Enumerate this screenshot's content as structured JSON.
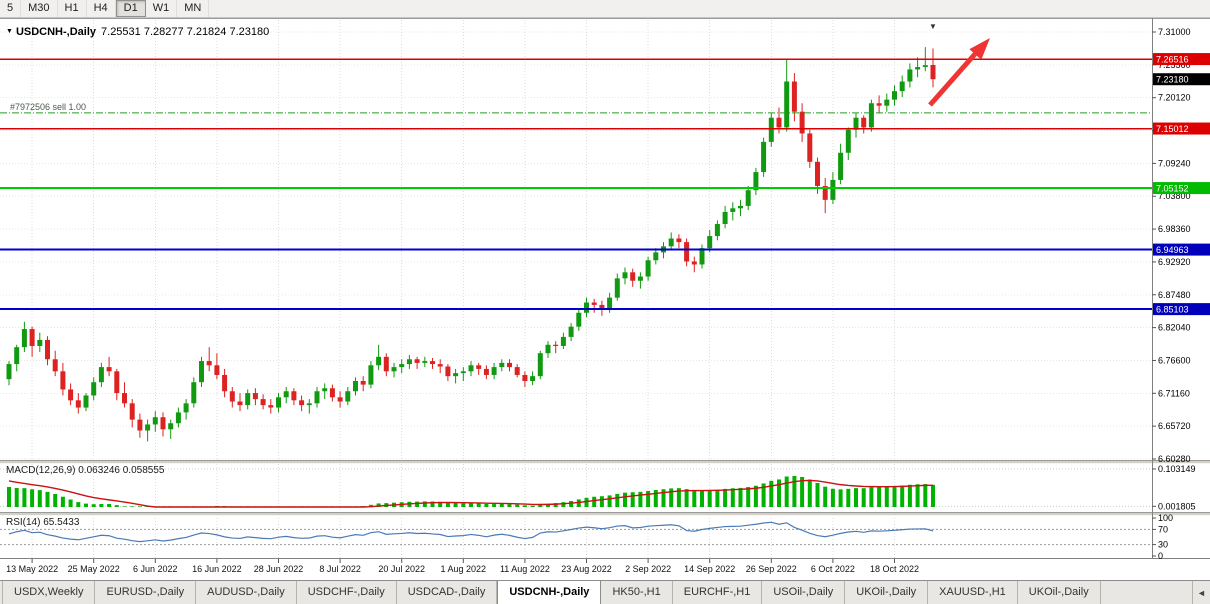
{
  "toolbar": {
    "timeframes": [
      {
        "label": "5",
        "active": false
      },
      {
        "label": "M30",
        "active": false
      },
      {
        "label": "H1",
        "active": false
      },
      {
        "label": "H4",
        "active": false
      },
      {
        "label": "D1",
        "active": true
      },
      {
        "label": "W1",
        "active": false
      },
      {
        "label": "MN",
        "active": false
      }
    ]
  },
  "chart": {
    "marker_icon": "▼",
    "shift_marker_icon": "▼",
    "title": "USDCNH-,Daily",
    "ohlc_text": "7.25531 7.28277 7.21824 7.23180"
  },
  "tabs": {
    "scroll_left_icon": "◄",
    "items": [
      {
        "label": "USDX,Weekly",
        "active": false
      },
      {
        "label": "EURUSD-,Daily",
        "active": false
      },
      {
        "label": "AUDUSD-,Daily",
        "active": false
      },
      {
        "label": "USDCHF-,Daily",
        "active": false
      },
      {
        "label": "USDCAD-,Daily",
        "active": false
      },
      {
        "label": "USDCNH-,Daily",
        "active": true
      },
      {
        "label": "HK50-,H1",
        "active": false
      },
      {
        "label": "EURCHF-,H1",
        "active": false
      },
      {
        "label": "USOil-,Daily",
        "active": false
      },
      {
        "label": "UKOil-,Daily",
        "active": false
      },
      {
        "label": "XAUUSD-,H1",
        "active": false
      },
      {
        "label": "UKOil-,Daily",
        "active": false
      }
    ]
  },
  "chart_data": {
    "type": "candlestick",
    "symbol": "USDCNH-",
    "period": "Daily",
    "open": 7.25531,
    "high": 7.28277,
    "low": 7.21824,
    "close": 7.2318,
    "colors": {
      "up": "#119a11",
      "down": "#dd2222"
    },
    "y_axis": {
      "min": 6.6028,
      "max": 7.31,
      "ticks": [
        7.31,
        7.2556,
        7.2012,
        7.1468,
        7.0924,
        7.038,
        6.9836,
        6.9292,
        6.8748,
        6.8204,
        6.766,
        6.7116,
        6.6572,
        6.6028
      ]
    },
    "x_axis": {
      "labels": [
        "13 May 2022",
        "25 May 2022",
        "6 Jun 2022",
        "16 Jun 2022",
        "28 Jun 2022",
        "8 Jul 2022",
        "20 Jul 2022",
        "1 Aug 2022",
        "11 Aug 2022",
        "23 Aug 2022",
        "2 Sep 2022",
        "14 Sep 2022",
        "26 Sep 2022",
        "6 Oct 2022",
        "18 Oct 2022"
      ],
      "label_indices": [
        3,
        11,
        19,
        27,
        35,
        43,
        51,
        59,
        67,
        75,
        83,
        91,
        99,
        107,
        115
      ]
    },
    "horizontal_lines": [
      {
        "price": 7.26516,
        "color": "#dd0000",
        "width": 1.5,
        "tag": "7.26516"
      },
      {
        "price": 7.15012,
        "color": "#dd0000",
        "width": 1.5,
        "tag": "7.15012"
      },
      {
        "price": 7.05152,
        "color": "#00cc00",
        "width": 2,
        "tag": "7.05152"
      },
      {
        "price": 6.94963,
        "color": "#0000cc",
        "width": 2,
        "tag": "6.94963"
      },
      {
        "price": 6.85103,
        "color": "#0000cc",
        "width": 2,
        "tag": "6.85103"
      }
    ],
    "price_tags": [
      {
        "text": "7.26516",
        "price": 7.26516,
        "bg": "#dd0000"
      },
      {
        "text": "7.23180",
        "price": 7.2318,
        "bg": "#000000"
      },
      {
        "text": "7.15012",
        "price": 7.15012,
        "bg": "#dd0000"
      },
      {
        "text": "7.05152",
        "price": 7.05152,
        "bg": "#00bb00"
      },
      {
        "text": "6.94963",
        "price": 6.94963,
        "bg": "#0000bb"
      },
      {
        "text": "6.85103",
        "price": 6.85103,
        "bg": "#0000bb"
      }
    ],
    "position_line": {
      "price": 7.176,
      "color": "#1fa11f",
      "label": "#7972506 sell 1.00"
    },
    "trend_arrow": {
      "color": "#f03333"
    },
    "indicators": {
      "macd": {
        "display": "MACD(12,26,9) 0.063246 0.058555",
        "value": 0.063246,
        "signal_value": 0.058555,
        "axis_ticks": [
          0.103149,
          0.001805
        ],
        "histogram_color": "#00b300",
        "signal_color": "#cc1111"
      },
      "rsi": {
        "display": "RSI(14) 65.5433",
        "value": 65.5433,
        "levels": [
          70,
          30
        ],
        "axis_ticks": [
          100,
          70,
          30,
          0
        ],
        "line_color": "#4a7ab5"
      }
    },
    "candles": [
      [
        6.735,
        6.765,
        6.725,
        6.76
      ],
      [
        6.76,
        6.792,
        6.748,
        6.788
      ],
      [
        6.788,
        6.83,
        6.78,
        6.818
      ],
      [
        6.818,
        6.822,
        6.772,
        6.79
      ],
      [
        6.79,
        6.812,
        6.78,
        6.8
      ],
      [
        6.8,
        6.806,
        6.758,
        6.768
      ],
      [
        6.768,
        6.782,
        6.74,
        6.748
      ],
      [
        6.748,
        6.762,
        6.708,
        6.718
      ],
      [
        6.718,
        6.728,
        6.692,
        6.7
      ],
      [
        6.7,
        6.712,
        6.678,
        6.688
      ],
      [
        6.688,
        6.712,
        6.682,
        6.708
      ],
      [
        6.708,
        6.738,
        6.7,
        6.73
      ],
      [
        6.73,
        6.762,
        6.722,
        6.755
      ],
      [
        6.755,
        6.772,
        6.74,
        6.748
      ],
      [
        6.748,
        6.752,
        6.7,
        6.712
      ],
      [
        6.712,
        6.73,
        6.688,
        6.695
      ],
      [
        6.695,
        6.702,
        6.655,
        6.668
      ],
      [
        6.668,
        6.678,
        6.638,
        6.65
      ],
      [
        6.65,
        6.668,
        6.632,
        6.66
      ],
      [
        6.66,
        6.682,
        6.648,
        6.672
      ],
      [
        6.672,
        6.68,
        6.64,
        6.652
      ],
      [
        6.652,
        6.668,
        6.636,
        6.662
      ],
      [
        6.662,
        6.688,
        6.655,
        6.68
      ],
      [
        6.68,
        6.702,
        6.668,
        6.695
      ],
      [
        6.695,
        6.738,
        6.688,
        6.73
      ],
      [
        6.73,
        6.772,
        6.722,
        6.765
      ],
      [
        6.765,
        6.788,
        6.748,
        6.758
      ],
      [
        6.758,
        6.778,
        6.735,
        6.742
      ],
      [
        6.742,
        6.752,
        6.705,
        6.715
      ],
      [
        6.715,
        6.722,
        6.688,
        6.698
      ],
      [
        6.698,
        6.712,
        6.682,
        6.692
      ],
      [
        6.692,
        6.718,
        6.685,
        6.712
      ],
      [
        6.712,
        6.72,
        6.692,
        6.702
      ],
      [
        6.702,
        6.71,
        6.685,
        6.692
      ],
      [
        6.692,
        6.702,
        6.678,
        6.688
      ],
      [
        6.688,
        6.712,
        6.68,
        6.705
      ],
      [
        6.705,
        6.722,
        6.695,
        6.715
      ],
      [
        6.715,
        6.72,
        6.692,
        6.7
      ],
      [
        6.7,
        6.708,
        6.682,
        6.692
      ],
      [
        6.692,
        6.702,
        6.678,
        6.695
      ],
      [
        6.695,
        6.722,
        6.688,
        6.715
      ],
      [
        6.715,
        6.728,
        6.702,
        6.72
      ],
      [
        6.72,
        6.726,
        6.698,
        6.705
      ],
      [
        6.705,
        6.715,
        6.688,
        6.698
      ],
      [
        6.698,
        6.722,
        6.692,
        6.715
      ],
      [
        6.715,
        6.738,
        6.708,
        6.732
      ],
      [
        6.732,
        6.74,
        6.715,
        6.726
      ],
      [
        6.726,
        6.765,
        6.72,
        6.758
      ],
      [
        6.758,
        6.792,
        6.75,
        6.772
      ],
      [
        6.772,
        6.778,
        6.74,
        6.748
      ],
      [
        6.748,
        6.762,
        6.738,
        6.755
      ],
      [
        6.755,
        6.768,
        6.745,
        6.76
      ],
      [
        6.76,
        6.775,
        6.752,
        6.768
      ],
      [
        6.768,
        6.772,
        6.752,
        6.762
      ],
      [
        6.762,
        6.772,
        6.755,
        6.765
      ],
      [
        6.765,
        6.77,
        6.752,
        6.76
      ],
      [
        6.76,
        6.768,
        6.745,
        6.756
      ],
      [
        6.756,
        6.76,
        6.732,
        6.74
      ],
      [
        6.74,
        6.752,
        6.728,
        6.745
      ],
      [
        6.745,
        6.755,
        6.732,
        6.748
      ],
      [
        6.748,
        6.765,
        6.74,
        6.758
      ],
      [
        6.758,
        6.762,
        6.742,
        6.752
      ],
      [
        6.752,
        6.758,
        6.735,
        6.742
      ],
      [
        6.742,
        6.762,
        6.735,
        6.755
      ],
      [
        6.755,
        6.768,
        6.748,
        6.762
      ],
      [
        6.762,
        6.768,
        6.748,
        6.755
      ],
      [
        6.755,
        6.76,
        6.738,
        6.742
      ],
      [
        6.742,
        6.748,
        6.722,
        6.732
      ],
      [
        6.732,
        6.748,
        6.725,
        6.74
      ],
      [
        6.74,
        6.782,
        6.735,
        6.778
      ],
      [
        6.778,
        6.798,
        6.77,
        6.792
      ],
      [
        6.792,
        6.798,
        6.778,
        6.79
      ],
      [
        6.79,
        6.812,
        6.785,
        6.805
      ],
      [
        6.805,
        6.828,
        6.798,
        6.822
      ],
      [
        6.822,
        6.852,
        6.815,
        6.845
      ],
      [
        6.845,
        6.87,
        6.838,
        6.862
      ],
      [
        6.862,
        6.868,
        6.845,
        6.858
      ],
      [
        6.858,
        6.865,
        6.84,
        6.852
      ],
      [
        6.852,
        6.878,
        6.845,
        6.87
      ],
      [
        6.87,
        6.91,
        6.865,
        6.902
      ],
      [
        6.902,
        6.92,
        6.892,
        6.912
      ],
      [
        6.912,
        6.918,
        6.888,
        6.898
      ],
      [
        6.898,
        6.912,
        6.885,
        6.905
      ],
      [
        6.905,
        6.938,
        6.898,
        6.932
      ],
      [
        6.932,
        6.952,
        6.925,
        6.945
      ],
      [
        6.945,
        6.962,
        6.935,
        6.955
      ],
      [
        6.955,
        6.978,
        6.948,
        6.968
      ],
      [
        6.968,
        6.975,
        6.952,
        6.962
      ],
      [
        6.962,
        6.968,
        6.922,
        6.93
      ],
      [
        6.93,
        6.938,
        6.912,
        6.925
      ],
      [
        6.925,
        6.958,
        6.918,
        6.952
      ],
      [
        6.952,
        6.982,
        6.945,
        6.972
      ],
      [
        6.972,
        6.998,
        6.965,
        6.992
      ],
      [
        6.992,
        7.022,
        6.985,
        7.012
      ],
      [
        7.012,
        7.028,
        6.998,
        7.018
      ],
      [
        7.018,
        7.032,
        7.005,
        7.022
      ],
      [
        7.022,
        7.055,
        7.015,
        7.048
      ],
      [
        7.048,
        7.085,
        7.04,
        7.078
      ],
      [
        7.078,
        7.135,
        7.07,
        7.128
      ],
      [
        7.128,
        7.175,
        7.12,
        7.168
      ],
      [
        7.168,
        7.185,
        7.142,
        7.152
      ],
      [
        7.152,
        7.265,
        7.145,
        7.228
      ],
      [
        7.228,
        7.242,
        7.162,
        7.178
      ],
      [
        7.178,
        7.192,
        7.128,
        7.142
      ],
      [
        7.142,
        7.148,
        7.085,
        7.095
      ],
      [
        7.095,
        7.102,
        7.042,
        7.055
      ],
      [
        7.055,
        7.068,
        7.01,
        7.032
      ],
      [
        7.032,
        7.078,
        7.025,
        7.065
      ],
      [
        7.065,
        7.125,
        7.058,
        7.11
      ],
      [
        7.11,
        7.152,
        7.098,
        7.148
      ],
      [
        7.148,
        7.175,
        7.135,
        7.168
      ],
      [
        7.168,
        7.172,
        7.142,
        7.152
      ],
      [
        7.152,
        7.198,
        7.145,
        7.192
      ],
      [
        7.192,
        7.205,
        7.175,
        7.188
      ],
      [
        7.188,
        7.208,
        7.178,
        7.198
      ],
      [
        7.198,
        7.222,
        7.188,
        7.212
      ],
      [
        7.212,
        7.238,
        7.202,
        7.228
      ],
      [
        7.228,
        7.258,
        7.218,
        7.248
      ],
      [
        7.248,
        7.268,
        7.235,
        7.252
      ],
      [
        7.252,
        7.285,
        7.245,
        7.255
      ],
      [
        7.25531,
        7.28277,
        7.21824,
        7.2318
      ]
    ]
  }
}
